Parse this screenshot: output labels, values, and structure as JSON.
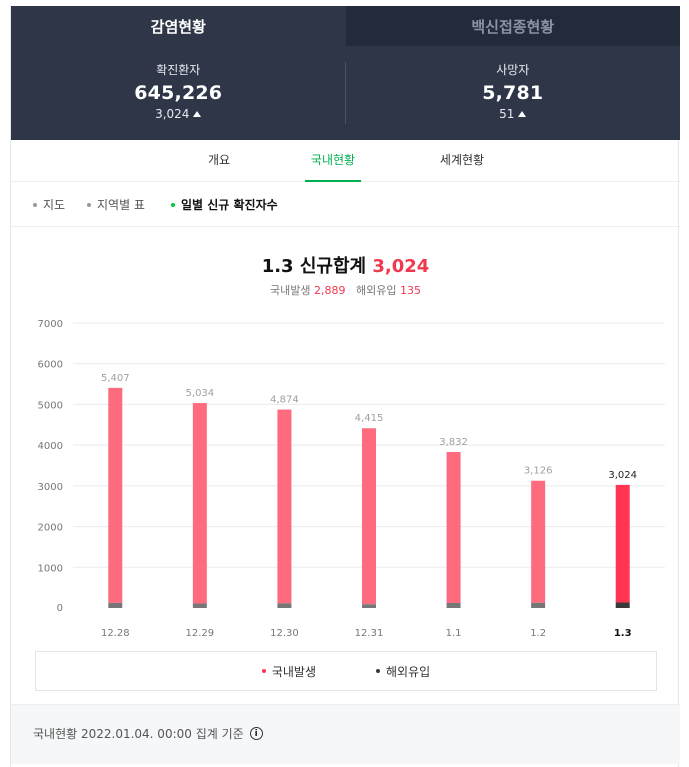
{
  "tabs": [
    {
      "label": "감염현황",
      "active": true
    },
    {
      "label": "백신접종현황",
      "active": false
    }
  ],
  "stats": [
    {
      "label": "확진환자",
      "value": "645,226",
      "delta": "3,024"
    },
    {
      "label": "사망자",
      "value": "5,781",
      "delta": "51"
    }
  ],
  "subtabs": [
    {
      "label": "개요",
      "active": false
    },
    {
      "label": "국내현황",
      "active": true
    },
    {
      "label": "세계현황",
      "active": false
    }
  ],
  "filters": [
    {
      "label": "지도",
      "active": false
    },
    {
      "label": "지역별 표",
      "active": false
    },
    {
      "label": "일별 신규 확진자수",
      "active": true
    }
  ],
  "summary": {
    "title_prefix": "1.3 신규합계",
    "total": "3,024",
    "domestic_label": "국내발생",
    "domestic_value": "2,889",
    "overseas_label": "해외유입",
    "overseas_value": "135"
  },
  "colors": {
    "domestic": "#ff6b7e",
    "domestic_latest": "#ff3553",
    "overseas": "#777777",
    "overseas_latest": "#3a3a3a",
    "accent_green": "#00b050",
    "header_bg": "#2e3648"
  },
  "chart_data": {
    "type": "bar",
    "stacked": true,
    "categories": [
      "12.28",
      "12.29",
      "12.30",
      "12.31",
      "1.1",
      "1.2",
      "1.3"
    ],
    "totals": [
      "5,407",
      "5,034",
      "4,874",
      "4,415",
      "3,832",
      "3,126",
      "3,024"
    ],
    "series": [
      {
        "name": "국내발생",
        "values": [
          5281,
          4924,
          4759,
          4322,
          3709,
          2998,
          2889
        ]
      },
      {
        "name": "해외유입",
        "values": [
          126,
          110,
          115,
          93,
          123,
          128,
          135
        ]
      }
    ],
    "y_ticks": [
      0,
      1000,
      2000,
      3000,
      4000,
      5000,
      6000,
      7000
    ],
    "ylim": [
      0,
      7000
    ],
    "grid": true,
    "legend_position": "bottom"
  },
  "footer": {
    "text": "국내현황 2022.01.04. 00:00 집계 기준",
    "info_icon": "info-icon"
  }
}
